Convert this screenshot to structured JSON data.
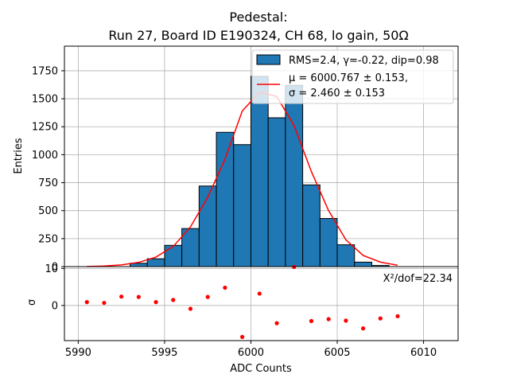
{
  "title_line1": "Pedestal:",
  "title_line2": "Run 27, Board ID E190324, CH 68, lo gain, 50Ω",
  "chart_data": [
    {
      "type": "bar",
      "panel": "histogram",
      "xlabel": "ADC Counts",
      "ylabel": "Entries",
      "xlim": [
        5989.2,
        6012
      ],
      "ylim": [
        0,
        1970
      ],
      "grid": true,
      "yticks": [
        0,
        250,
        500,
        750,
        1000,
        1250,
        1500,
        1750
      ],
      "bin_edges": [
        5993,
        5994,
        5995,
        5996,
        5997,
        5998,
        5999,
        6000,
        6001,
        6002,
        6003,
        6004,
        6005,
        6006,
        6007,
        6008
      ],
      "values": [
        30,
        70,
        190,
        340,
        720,
        1200,
        1090,
        1700,
        1330,
        1620,
        730,
        430,
        195,
        40,
        10
      ],
      "bar_color": "#1f77b4",
      "fit_x": [
        5990.5,
        5991.5,
        5992.5,
        5993.5,
        5994.5,
        5995.5,
        5996.5,
        5997.5,
        5998.5,
        5999.5,
        6000.5,
        6001.5,
        6002.5,
        6003.5,
        6004.5,
        6005.5,
        6006.5,
        6007.5,
        6008.5
      ],
      "fit_y": [
        1,
        5,
        15,
        38,
        85,
        180,
        355,
        620,
        960,
        1390,
        1560,
        1520,
        1260,
        850,
        500,
        240,
        100,
        40,
        12
      ],
      "fit_color": "#ff0000",
      "legend": {
        "position": "top-right",
        "hist_label": "RMS=2.4, γ=-0.22, dip=0.98",
        "fit_label_line1": "μ = 6000.767 ± 0.153,",
        "fit_label_line2": "σ = 2.460 ± 0.153"
      }
    },
    {
      "type": "scatter",
      "panel": "residuals",
      "ylabel": "σ",
      "ylim": [
        -9.5,
        10.5
      ],
      "grid": true,
      "yticks": [
        0,
        10
      ],
      "xticks": [
        5990,
        5995,
        6000,
        6005,
        6010
      ],
      "x": [
        5990.5,
        5991.5,
        5992.5,
        5993.5,
        5994.5,
        5995.5,
        5996.5,
        5997.5,
        5998.5,
        6000.5,
        6001.5,
        6002.5,
        6003.5,
        6004.5,
        6005.5,
        6006.5,
        6007.5,
        6008.5,
        5999.5
      ],
      "y": [
        0.9,
        0.7,
        2.4,
        2.3,
        0.9,
        1.5,
        -0.9,
        2.3,
        4.8,
        3.2,
        -4.8,
        10.4,
        -4.2,
        -3.7,
        -4.1,
        -6.2,
        -3.5,
        -2.9,
        -8.5
      ],
      "color": "#ff0000",
      "annotation": "X²/dof=22.34"
    }
  ]
}
